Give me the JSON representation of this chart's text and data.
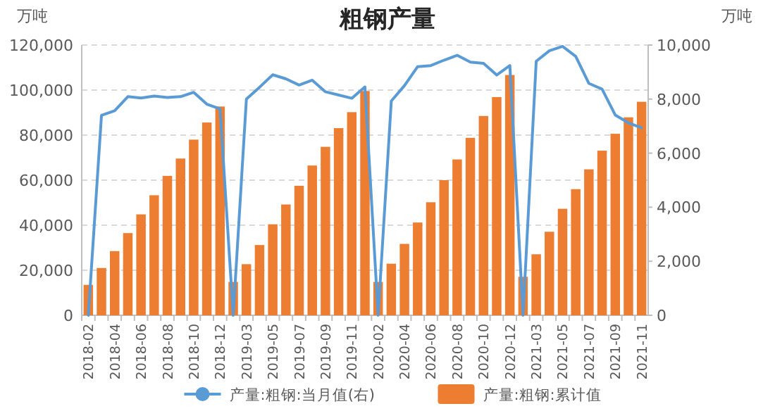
{
  "chart_data": {
    "type": "bar",
    "title": "粗钢产量",
    "ylabel": "万吨",
    "y2label": "万吨",
    "categories": [
      "2018-02",
      null,
      "2018-04",
      null,
      "2018-06",
      null,
      "2018-08",
      null,
      "2018-10",
      null,
      "2018-12",
      null,
      "2019-03",
      null,
      "2019-05",
      null,
      "2019-07",
      null,
      "2019-09",
      null,
      "2019-11",
      null,
      "2020-02",
      null,
      "2020-04",
      null,
      "2020-06",
      null,
      "2020-08",
      null,
      "2020-10",
      null,
      "2020-12",
      null,
      "2021-03",
      null,
      "2021-05",
      null,
      "2021-07",
      null,
      "2021-09",
      null,
      "2021-11"
    ],
    "series": [
      {
        "name": "产量:粗钢:当月值(右)",
        "type": "line",
        "axis": "y2",
        "color": "#5b9bd5",
        "values": [
          0,
          7400,
          7570,
          8090,
          8040,
          8110,
          8060,
          8090,
          8250,
          7810,
          7640,
          0,
          8000,
          8440,
          8900,
          8750,
          8520,
          8700,
          8270,
          8150,
          8030,
          8450,
          0,
          7930,
          8500,
          9200,
          9240,
          9440,
          9620,
          9370,
          9320,
          8890,
          9240,
          0,
          9400,
          9790,
          9950,
          9580,
          8580,
          8370,
          7410,
          7120,
          6940
        ]
      },
      {
        "name": "产量:粗钢:累计值",
        "color": "#ed7d31",
        "values": [
          13500,
          21000,
          28500,
          36500,
          44800,
          53300,
          61900,
          69600,
          78000,
          85600,
          92700,
          14800,
          22700,
          31200,
          40400,
          49200,
          57500,
          66500,
          74800,
          83100,
          90200,
          99600,
          14800,
          22900,
          31700,
          41200,
          50200,
          60000,
          69200,
          78800,
          88500,
          96900,
          106700,
          17100,
          27100,
          37100,
          47300,
          56000,
          64800,
          73100,
          80600,
          87900,
          94800
        ]
      }
    ],
    "ylim": [
      0,
      120000
    ],
    "yticks": [
      0,
      {
        "value": 20000,
        "label": "20,000"
      },
      {
        "value": 40000,
        "label": "40,000"
      },
      {
        "value": 60000,
        "label": "60,000"
      },
      {
        "value": 80000,
        "label": "80,000"
      },
      {
        "value": 100000,
        "label": "100,000"
      },
      {
        "value": 120000,
        "label": "120,000"
      }
    ],
    "y2lim": [
      0,
      10000
    ],
    "y2ticks": [
      0,
      {
        "value": 2000,
        "label": "2,000"
      },
      {
        "value": 4000,
        "label": "4,000"
      },
      {
        "value": 6000,
        "label": "6,000"
      },
      {
        "value": 8000,
        "label": "8,000"
      },
      {
        "value": 10000,
        "label": "10,000"
      }
    ],
    "grid": "y",
    "legend": "bottom"
  }
}
